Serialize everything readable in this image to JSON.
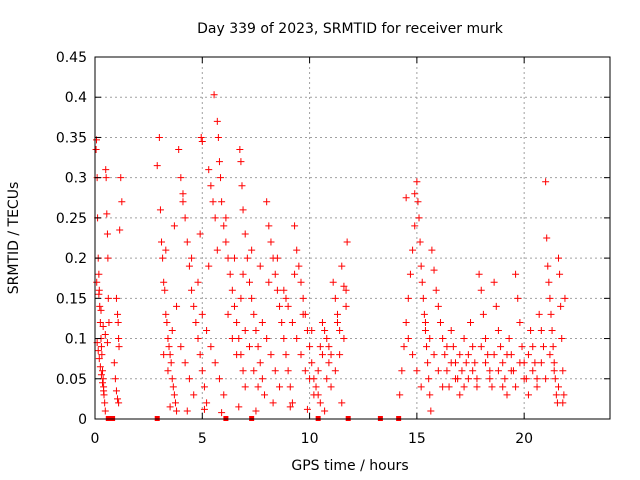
{
  "chart_data": {
    "type": "scatter",
    "title": "Day 339 of 2023, SRMTID for receiver murk",
    "xlabel": "GPS time / hours",
    "ylabel": "SRMTID / TECUs",
    "xlim": [
      0,
      24
    ],
    "ylim": [
      0,
      0.45
    ],
    "xticks": [
      0,
      5,
      10,
      15,
      20
    ],
    "xtick_labels": [
      "0",
      "5",
      "10",
      "15",
      "20"
    ],
    "yticks": [
      0,
      0.05,
      0.1,
      0.15,
      0.2,
      0.25,
      0.3,
      0.35,
      0.4,
      0.45
    ],
    "ytick_labels": [
      "0",
      "0.05",
      "0.1",
      "0.15",
      "0.2",
      "0.25",
      "0.3",
      "0.35",
      "0.4",
      "0.45"
    ],
    "grid": true,
    "marker": "+",
    "color": "#ff0000",
    "points": [
      [
        0.05,
        0.335
      ],
      [
        0.07,
        0.347
      ],
      [
        0.1,
        0.3
      ],
      [
        0.12,
        0.25
      ],
      [
        0.15,
        0.2
      ],
      [
        0.18,
        0.18
      ],
      [
        0.2,
        0.16
      ],
      [
        0.22,
        0.14
      ],
      [
        0.25,
        0.12
      ],
      [
        0.28,
        0.1
      ],
      [
        0.3,
        0.09
      ],
      [
        0.32,
        0.08
      ],
      [
        0.35,
        0.06
      ],
      [
        0.38,
        0.05
      ],
      [
        0.4,
        0.04
      ],
      [
        0.42,
        0.03
      ],
      [
        0.45,
        0.02
      ],
      [
        0.48,
        0.01
      ],
      [
        0.5,
        0.31
      ],
      [
        0.52,
        0.3
      ],
      [
        0.55,
        0.255
      ],
      [
        0.58,
        0.23
      ],
      [
        0.6,
        0.2
      ],
      [
        0.62,
        0.15
      ],
      [
        0.65,
        0.12
      ],
      [
        0.1,
        0.095
      ],
      [
        0.15,
        0.085
      ],
      [
        0.2,
        0.075
      ],
      [
        0.25,
        0.065
      ],
      [
        0.3,
        0.055
      ],
      [
        0.35,
        0.045
      ],
      [
        0.4,
        0.035
      ],
      [
        0.08,
        0.17
      ],
      [
        0.18,
        0.155
      ],
      [
        0.28,
        0.135
      ],
      [
        0.38,
        0.115
      ],
      [
        0.48,
        0.105
      ],
      [
        0.58,
        0.095
      ],
      [
        0.9,
        0.07
      ],
      [
        0.95,
        0.05
      ],
      [
        1.0,
        0.035
      ],
      [
        1.05,
        0.025
      ],
      [
        1.1,
        0.02
      ],
      [
        1.0,
        0.15
      ],
      [
        1.05,
        0.13
      ],
      [
        1.08,
        0.12
      ],
      [
        1.1,
        0.1
      ],
      [
        1.12,
        0.09
      ],
      [
        1.2,
        0.3
      ],
      [
        1.25,
        0.27
      ],
      [
        1.15,
        0.235
      ],
      [
        2.9,
        0.315
      ],
      [
        3.0,
        0.35
      ],
      [
        3.05,
        0.26
      ],
      [
        3.1,
        0.22
      ],
      [
        3.15,
        0.2
      ],
      [
        3.2,
        0.17
      ],
      [
        3.25,
        0.16
      ],
      [
        3.3,
        0.13
      ],
      [
        3.35,
        0.12
      ],
      [
        3.4,
        0.1
      ],
      [
        3.45,
        0.09
      ],
      [
        3.5,
        0.08
      ],
      [
        3.55,
        0.07
      ],
      [
        3.6,
        0.05
      ],
      [
        3.65,
        0.04
      ],
      [
        3.7,
        0.03
      ],
      [
        3.75,
        0.02
      ],
      [
        3.8,
        0.01
      ],
      [
        3.9,
        0.335
      ],
      [
        4.0,
        0.3
      ],
      [
        4.1,
        0.28
      ],
      [
        4.2,
        0.25
      ],
      [
        4.3,
        0.22
      ],
      [
        4.4,
        0.19
      ],
      [
        4.5,
        0.16
      ],
      [
        4.6,
        0.14
      ],
      [
        4.7,
        0.12
      ],
      [
        4.8,
        0.1
      ],
      [
        4.9,
        0.08
      ],
      [
        5.0,
        0.06
      ],
      [
        5.1,
        0.04
      ],
      [
        5.2,
        0.02
      ],
      [
        4.95,
        0.35
      ],
      [
        5.0,
        0.345
      ],
      [
        5.3,
        0.31
      ],
      [
        5.4,
        0.29
      ],
      [
        5.5,
        0.27
      ],
      [
        5.6,
        0.25
      ],
      [
        5.55,
        0.403
      ],
      [
        5.7,
        0.37
      ],
      [
        5.75,
        0.35
      ],
      [
        5.8,
        0.32
      ],
      [
        5.85,
        0.3
      ],
      [
        5.9,
        0.27
      ],
      [
        6.0,
        0.24
      ],
      [
        6.1,
        0.22
      ],
      [
        6.2,
        0.2
      ],
      [
        6.3,
        0.18
      ],
      [
        6.4,
        0.16
      ],
      [
        6.5,
        0.14
      ],
      [
        6.6,
        0.12
      ],
      [
        6.7,
        0.1
      ],
      [
        6.8,
        0.08
      ],
      [
        6.9,
        0.06
      ],
      [
        7.0,
        0.04
      ],
      [
        6.75,
        0.335
      ],
      [
        6.8,
        0.32
      ],
      [
        6.85,
        0.29
      ],
      [
        6.9,
        0.26
      ],
      [
        7.0,
        0.23
      ],
      [
        7.1,
        0.2
      ],
      [
        7.2,
        0.17
      ],
      [
        7.3,
        0.15
      ],
      [
        7.4,
        0.13
      ],
      [
        7.5,
        0.11
      ],
      [
        7.6,
        0.09
      ],
      [
        7.7,
        0.07
      ],
      [
        7.8,
        0.05
      ],
      [
        7.9,
        0.03
      ],
      [
        8.0,
        0.27
      ],
      [
        8.1,
        0.24
      ],
      [
        8.2,
        0.22
      ],
      [
        8.3,
        0.2
      ],
      [
        8.4,
        0.18
      ],
      [
        8.5,
        0.16
      ],
      [
        8.6,
        0.14
      ],
      [
        8.7,
        0.12
      ],
      [
        8.8,
        0.1
      ],
      [
        8.9,
        0.08
      ],
      [
        9.0,
        0.06
      ],
      [
        9.1,
        0.04
      ],
      [
        9.2,
        0.02
      ],
      [
        9.3,
        0.24
      ],
      [
        9.4,
        0.21
      ],
      [
        9.5,
        0.19
      ],
      [
        9.6,
        0.17
      ],
      [
        9.7,
        0.15
      ],
      [
        9.8,
        0.13
      ],
      [
        9.9,
        0.11
      ],
      [
        10.0,
        0.09
      ],
      [
        10.1,
        0.07
      ],
      [
        10.2,
        0.05
      ],
      [
        10.3,
        0.04
      ],
      [
        10.4,
        0.03
      ],
      [
        10.5,
        0.02
      ],
      [
        10.6,
        0.12
      ],
      [
        10.7,
        0.11
      ],
      [
        10.8,
        0.1
      ],
      [
        10.9,
        0.09
      ],
      [
        11.0,
        0.08
      ],
      [
        11.1,
        0.17
      ],
      [
        11.2,
        0.15
      ],
      [
        11.3,
        0.13
      ],
      [
        11.4,
        0.11
      ],
      [
        11.5,
        0.19
      ],
      [
        11.6,
        0.165
      ],
      [
        11.7,
        0.14
      ],
      [
        11.75,
        0.22
      ],
      [
        3.2,
        0.08
      ],
      [
        3.4,
        0.06
      ],
      [
        3.6,
        0.11
      ],
      [
        3.8,
        0.14
      ],
      [
        4.0,
        0.09
      ],
      [
        4.2,
        0.07
      ],
      [
        4.4,
        0.05
      ],
      [
        4.6,
        0.03
      ],
      [
        4.8,
        0.17
      ],
      [
        5.0,
        0.13
      ],
      [
        5.2,
        0.11
      ],
      [
        5.4,
        0.09
      ],
      [
        5.6,
        0.07
      ],
      [
        5.8,
        0.05
      ],
      [
        6.0,
        0.03
      ],
      [
        6.2,
        0.13
      ],
      [
        6.4,
        0.1
      ],
      [
        6.6,
        0.08
      ],
      [
        6.8,
        0.15
      ],
      [
        7.0,
        0.11
      ],
      [
        7.2,
        0.09
      ],
      [
        7.4,
        0.06
      ],
      [
        7.6,
        0.04
      ],
      [
        7.8,
        0.12
      ],
      [
        8.0,
        0.1
      ],
      [
        8.2,
        0.08
      ],
      [
        8.4,
        0.06
      ],
      [
        8.6,
        0.04
      ],
      [
        8.8,
        0.16
      ],
      [
        9.0,
        0.14
      ],
      [
        9.2,
        0.12
      ],
      [
        9.4,
        0.1
      ],
      [
        9.6,
        0.08
      ],
      [
        9.8,
        0.06
      ],
      [
        10.0,
        0.05
      ],
      [
        10.2,
        0.03
      ],
      [
        10.4,
        0.06
      ],
      [
        10.6,
        0.08
      ],
      [
        10.8,
        0.05
      ],
      [
        11.0,
        0.04
      ],
      [
        11.2,
        0.06
      ],
      [
        11.4,
        0.08
      ],
      [
        11.6,
        0.1
      ],
      [
        3.3,
        0.21
      ],
      [
        3.7,
        0.24
      ],
      [
        4.1,
        0.27
      ],
      [
        4.5,
        0.2
      ],
      [
        4.9,
        0.23
      ],
      [
        5.3,
        0.19
      ],
      [
        5.7,
        0.21
      ],
      [
        6.1,
        0.25
      ],
      [
        6.5,
        0.2
      ],
      [
        6.9,
        0.18
      ],
      [
        7.3,
        0.21
      ],
      [
        7.7,
        0.19
      ],
      [
        8.1,
        0.17
      ],
      [
        8.5,
        0.2
      ],
      [
        8.9,
        0.15
      ],
      [
        9.3,
        0.18
      ],
      [
        9.7,
        0.13
      ],
      [
        10.1,
        0.11
      ],
      [
        10.5,
        0.09
      ],
      [
        10.9,
        0.07
      ],
      [
        11.3,
        0.12
      ],
      [
        11.7,
        0.16
      ],
      [
        3.5,
        0.015
      ],
      [
        4.3,
        0.01
      ],
      [
        5.1,
        0.012
      ],
      [
        5.9,
        0.008
      ],
      [
        6.7,
        0.015
      ],
      [
        7.5,
        0.01
      ],
      [
        8.3,
        0.02
      ],
      [
        9.1,
        0.015
      ],
      [
        9.9,
        0.012
      ],
      [
        10.7,
        0.01
      ],
      [
        11.5,
        0.02
      ],
      [
        14.2,
        0.03
      ],
      [
        14.3,
        0.06
      ],
      [
        14.4,
        0.09
      ],
      [
        14.5,
        0.12
      ],
      [
        14.6,
        0.15
      ],
      [
        14.7,
        0.18
      ],
      [
        14.8,
        0.21
      ],
      [
        14.9,
        0.24
      ],
      [
        14.5,
        0.275
      ],
      [
        14.9,
        0.28
      ],
      [
        15.0,
        0.295
      ],
      [
        15.05,
        0.27
      ],
      [
        15.1,
        0.25
      ],
      [
        15.15,
        0.22
      ],
      [
        15.2,
        0.19
      ],
      [
        15.25,
        0.17
      ],
      [
        15.3,
        0.15
      ],
      [
        15.35,
        0.13
      ],
      [
        15.4,
        0.11
      ],
      [
        15.45,
        0.09
      ],
      [
        15.5,
        0.07
      ],
      [
        15.55,
        0.05
      ],
      [
        15.6,
        0.03
      ],
      [
        15.65,
        0.01
      ],
      [
        15.7,
        0.21
      ],
      [
        15.8,
        0.185
      ],
      [
        15.9,
        0.16
      ],
      [
        16.0,
        0.14
      ],
      [
        16.1,
        0.12
      ],
      [
        16.2,
        0.1
      ],
      [
        16.3,
        0.08
      ],
      [
        16.4,
        0.06
      ],
      [
        16.5,
        0.04
      ],
      [
        16.6,
        0.11
      ],
      [
        16.7,
        0.09
      ],
      [
        16.8,
        0.07
      ],
      [
        16.9,
        0.05
      ],
      [
        17.0,
        0.08
      ],
      [
        17.1,
        0.06
      ],
      [
        17.2,
        0.1
      ],
      [
        17.3,
        0.07
      ],
      [
        17.4,
        0.05
      ],
      [
        17.5,
        0.12
      ],
      [
        17.6,
        0.09
      ],
      [
        17.7,
        0.07
      ],
      [
        17.8,
        0.05
      ],
      [
        17.9,
        0.18
      ],
      [
        18.0,
        0.16
      ],
      [
        18.1,
        0.13
      ],
      [
        18.2,
        0.1
      ],
      [
        18.3,
        0.08
      ],
      [
        18.4,
        0.06
      ],
      [
        18.5,
        0.04
      ],
      [
        18.6,
        0.17
      ],
      [
        18.7,
        0.14
      ],
      [
        18.8,
        0.11
      ],
      [
        18.9,
        0.09
      ],
      [
        19.0,
        0.07
      ],
      [
        19.1,
        0.05
      ],
      [
        19.2,
        0.03
      ],
      [
        19.3,
        0.1
      ],
      [
        19.4,
        0.08
      ],
      [
        19.5,
        0.06
      ],
      [
        19.6,
        0.18
      ],
      [
        19.7,
        0.15
      ],
      [
        19.8,
        0.12
      ],
      [
        19.9,
        0.09
      ],
      [
        20.0,
        0.07
      ],
      [
        20.1,
        0.05
      ],
      [
        20.2,
        0.03
      ],
      [
        20.3,
        0.11
      ],
      [
        20.4,
        0.09
      ],
      [
        20.5,
        0.07
      ],
      [
        20.6,
        0.05
      ],
      [
        20.7,
        0.13
      ],
      [
        20.8,
        0.11
      ],
      [
        20.9,
        0.09
      ],
      [
        21.0,
        0.295
      ],
      [
        21.05,
        0.225
      ],
      [
        21.1,
        0.19
      ],
      [
        21.15,
        0.17
      ],
      [
        21.2,
        0.15
      ],
      [
        21.25,
        0.13
      ],
      [
        21.3,
        0.11
      ],
      [
        21.35,
        0.09
      ],
      [
        21.4,
        0.07
      ],
      [
        21.45,
        0.05
      ],
      [
        21.5,
        0.03
      ],
      [
        21.55,
        0.02
      ],
      [
        21.6,
        0.2
      ],
      [
        21.65,
        0.18
      ],
      [
        21.7,
        0.14
      ],
      [
        21.75,
        0.1
      ],
      [
        21.8,
        0.06
      ],
      [
        21.85,
        0.03
      ],
      [
        21.9,
        0.15
      ],
      [
        14.6,
        0.1
      ],
      [
        14.8,
        0.08
      ],
      [
        15.0,
        0.06
      ],
      [
        15.2,
        0.04
      ],
      [
        15.4,
        0.12
      ],
      [
        15.6,
        0.1
      ],
      [
        15.8,
        0.08
      ],
      [
        16.0,
        0.06
      ],
      [
        16.2,
        0.04
      ],
      [
        16.4,
        0.09
      ],
      [
        16.6,
        0.07
      ],
      [
        16.8,
        0.05
      ],
      [
        17.0,
        0.03
      ],
      [
        17.2,
        0.04
      ],
      [
        17.4,
        0.08
      ],
      [
        17.6,
        0.06
      ],
      [
        17.8,
        0.04
      ],
      [
        18.0,
        0.09
      ],
      [
        18.2,
        0.07
      ],
      [
        18.4,
        0.05
      ],
      [
        18.6,
        0.08
      ],
      [
        18.8,
        0.06
      ],
      [
        19.0,
        0.04
      ],
      [
        19.2,
        0.08
      ],
      [
        19.4,
        0.06
      ],
      [
        19.6,
        0.04
      ],
      [
        19.8,
        0.07
      ],
      [
        20.0,
        0.05
      ],
      [
        20.2,
        0.08
      ],
      [
        20.4,
        0.06
      ],
      [
        20.6,
        0.04
      ],
      [
        20.8,
        0.07
      ],
      [
        21.0,
        0.05
      ],
      [
        21.2,
        0.08
      ],
      [
        21.4,
        0.06
      ],
      [
        21.6,
        0.04
      ],
      [
        21.8,
        0.02
      ]
    ],
    "flagged_points": [
      [
        0.62,
        0
      ],
      [
        0.72,
        0
      ],
      [
        0.82,
        0
      ],
      [
        2.9,
        0
      ],
      [
        6.1,
        0
      ],
      [
        7.3,
        0
      ],
      [
        10.4,
        0
      ],
      [
        11.8,
        0
      ],
      [
        13.3,
        0
      ],
      [
        14.15,
        0
      ]
    ]
  }
}
